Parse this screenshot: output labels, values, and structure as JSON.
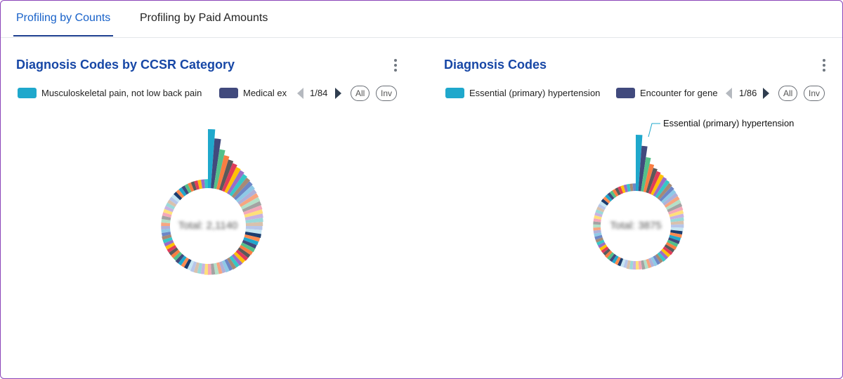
{
  "tabs": [
    {
      "label": "Profiling by Counts",
      "active": true
    },
    {
      "label": "Profiling by Paid Amounts",
      "active": false
    }
  ],
  "panels": [
    {
      "title": "Diagnosis Codes by CCSR Category",
      "legend": {
        "items": [
          {
            "label": "Musculoskeletal pain, not low back pain",
            "color": "#1fa8cc"
          },
          {
            "label": "Medical ex",
            "color": "#414a7d"
          }
        ],
        "pager": "1/84",
        "all_label": "All",
        "inv_label": "Inv"
      },
      "center_total": "Total: 2,1140"
    },
    {
      "title": "Diagnosis Codes",
      "legend": {
        "items": [
          {
            "label": "Essential (primary) hypertension",
            "color": "#1fa8cc"
          },
          {
            "label": "Encounter for gene",
            "color": "#414a7d"
          }
        ],
        "pager": "1/86",
        "all_label": "All",
        "inv_label": "Inv"
      },
      "center_total": "Total: 3875",
      "callout": "Essential (primary) hypertension"
    }
  ],
  "chart_data": [
    {
      "type": "pie",
      "variant": "rose",
      "title": "Diagnosis Codes by CCSR Category",
      "category_count": 84,
      "top_categories": [
        "Musculoskeletal pain, not low back pain",
        "Medical ex"
      ],
      "series": [
        {
          "values": [
            1.0,
            0.82,
            0.62,
            0.52,
            0.46,
            0.42,
            0.38,
            0.36,
            0.33,
            0.31,
            0.29,
            0.27,
            0.25,
            0.24,
            0.23,
            0.22,
            0.21,
            0.2,
            0.19,
            0.18,
            0.17,
            0.16,
            0.15,
            0.15,
            0.14,
            0.13,
            0.12,
            0.12,
            0.11,
            0.1,
            0.1,
            0.09,
            0.09,
            0.08,
            0.08,
            0.07,
            0.07,
            0.06,
            0.06,
            0.06,
            0.05,
            0.05,
            0.05,
            0.04,
            0.04,
            0.04,
            0.04,
            0.03,
            0.03,
            0.03,
            0.03,
            0.03,
            0.02,
            0.02,
            0.02,
            0.02,
            0.02,
            0.02,
            0.02,
            0.02,
            0.01,
            0.01,
            0.01,
            0.01,
            0.01,
            0.01,
            0.01,
            0.01,
            0.01,
            0.01,
            0.01,
            0.01,
            0.01,
            0.01,
            0.01,
            0.01,
            0.01,
            0.01,
            0.01,
            0.01,
            0.01,
            0.01,
            0.01,
            0.01
          ]
        }
      ],
      "colors": [
        "#1fa8cc",
        "#414a7d",
        "#54c08a",
        "#f97d42",
        "#5a5a5a",
        "#e03c5a",
        "#ffc107",
        "#9b6dc6",
        "#36c7c7",
        "#a68a76",
        "#6d86c6",
        "#8ec9e6",
        "#b0b0d8",
        "#f7a580",
        "#b4e0c8",
        "#a3a3a3",
        "#f4a8b8",
        "#ffe07a",
        "#c9b2e0",
        "#9ad9d9",
        "#d8c1ad",
        "#b7c6ea",
        "#c6e6f3",
        "#1c3d6e",
        "#ff8a50"
      ],
      "center_total": "Total: 2,1140"
    },
    {
      "type": "pie",
      "variant": "rose",
      "title": "Diagnosis Codes",
      "category_count": 86,
      "top_categories": [
        "Essential (primary) hypertension",
        "Encounter for gene"
      ],
      "series": [
        {
          "values": [
            1.0,
            0.78,
            0.56,
            0.44,
            0.38,
            0.34,
            0.31,
            0.29,
            0.27,
            0.25,
            0.23,
            0.21,
            0.2,
            0.19,
            0.18,
            0.17,
            0.16,
            0.15,
            0.14,
            0.13,
            0.12,
            0.12,
            0.11,
            0.1,
            0.1,
            0.09,
            0.09,
            0.08,
            0.08,
            0.07,
            0.07,
            0.06,
            0.06,
            0.06,
            0.05,
            0.05,
            0.05,
            0.04,
            0.04,
            0.04,
            0.04,
            0.03,
            0.03,
            0.03,
            0.03,
            0.03,
            0.02,
            0.02,
            0.02,
            0.02,
            0.02,
            0.02,
            0.02,
            0.02,
            0.01,
            0.01,
            0.01,
            0.01,
            0.01,
            0.01,
            0.01,
            0.01,
            0.01,
            0.01,
            0.01,
            0.01,
            0.01,
            0.01,
            0.01,
            0.01,
            0.01,
            0.01,
            0.01,
            0.01,
            0.01,
            0.01,
            0.01,
            0.01,
            0.01,
            0.01,
            0.01,
            0.01,
            0.01,
            0.01,
            0.01,
            0.01
          ]
        }
      ],
      "colors": [
        "#1fa8cc",
        "#414a7d",
        "#54c08a",
        "#f97d42",
        "#5a5a5a",
        "#e03c5a",
        "#ffc107",
        "#9b6dc6",
        "#36c7c7",
        "#a68a76",
        "#6d86c6",
        "#8ec9e6",
        "#b0b0d8",
        "#f7a580",
        "#b4e0c8",
        "#a3a3a3",
        "#f4a8b8",
        "#ffe07a",
        "#c9b2e0",
        "#9ad9d9",
        "#d8c1ad",
        "#b7c6ea",
        "#c6e6f3",
        "#1c3d6e",
        "#ff8a50"
      ],
      "center_total": "Total: 3875",
      "annotation": "Essential (primary) hypertension"
    }
  ]
}
